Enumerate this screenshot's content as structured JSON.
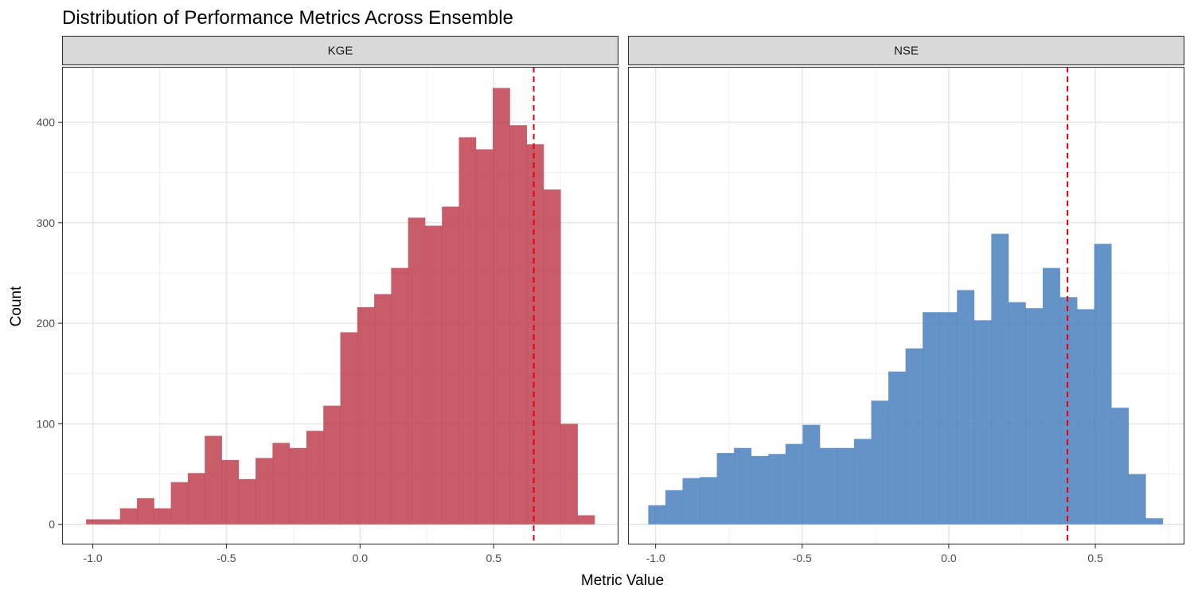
{
  "chart_data": {
    "type": "bar",
    "subtype": "faceted-histogram",
    "title": "Distribution of Performance Metrics Across Ensemble",
    "xlabel": "Metric Value",
    "ylabel": "Count",
    "ylim": [
      -20,
      455
    ],
    "yticks": [
      0,
      100,
      200,
      300,
      400
    ],
    "ytick_labels": [
      "0",
      "100",
      "200",
      "300",
      "400"
    ],
    "grid": true,
    "reference_line_color": "#ee0000",
    "panels": [
      {
        "name": "KGE",
        "strip_label": "KGE",
        "color": "#c0404f",
        "xlim": [
          -1.115,
          0.967
        ],
        "xticks": [
          -1.0,
          -0.5,
          0.0,
          0.5
        ],
        "xtick_labels": [
          "-1.0",
          "-0.5",
          "0.0",
          "0.5"
        ],
        "xminor": [
          -0.75,
          -0.25,
          0.25,
          0.75
        ],
        "bin_width": 0.0634,
        "first_bin_left": -1.025,
        "counts": [
          5,
          5,
          16,
          26,
          16,
          42,
          51,
          88,
          64,
          45,
          66,
          81,
          76,
          93,
          118,
          191,
          216,
          229,
          255,
          305,
          297,
          316,
          385,
          373,
          434,
          397,
          378,
          333,
          100,
          9
        ],
        "reference_line": 0.65
      },
      {
        "name": "NSE",
        "strip_label": "NSE",
        "color": "#4a80bd",
        "xlim": [
          -1.094,
          0.804
        ],
        "xticks": [
          -1.0,
          -0.5,
          0.0,
          0.5
        ],
        "xtick_labels": [
          "-1.0",
          "-0.5",
          "0.0",
          "0.5"
        ],
        "xminor": [
          -0.75,
          -0.25,
          0.25,
          0.75
        ],
        "bin_width": 0.0585,
        "first_bin_left": -1.025,
        "counts": [
          19,
          34,
          46,
          47,
          71,
          76,
          68,
          70,
          80,
          99,
          76,
          76,
          85,
          123,
          152,
          175,
          211,
          211,
          233,
          203,
          289,
          221,
          215,
          255,
          226,
          214,
          279,
          116,
          50,
          6
        ],
        "reference_line": 0.405
      }
    ]
  }
}
